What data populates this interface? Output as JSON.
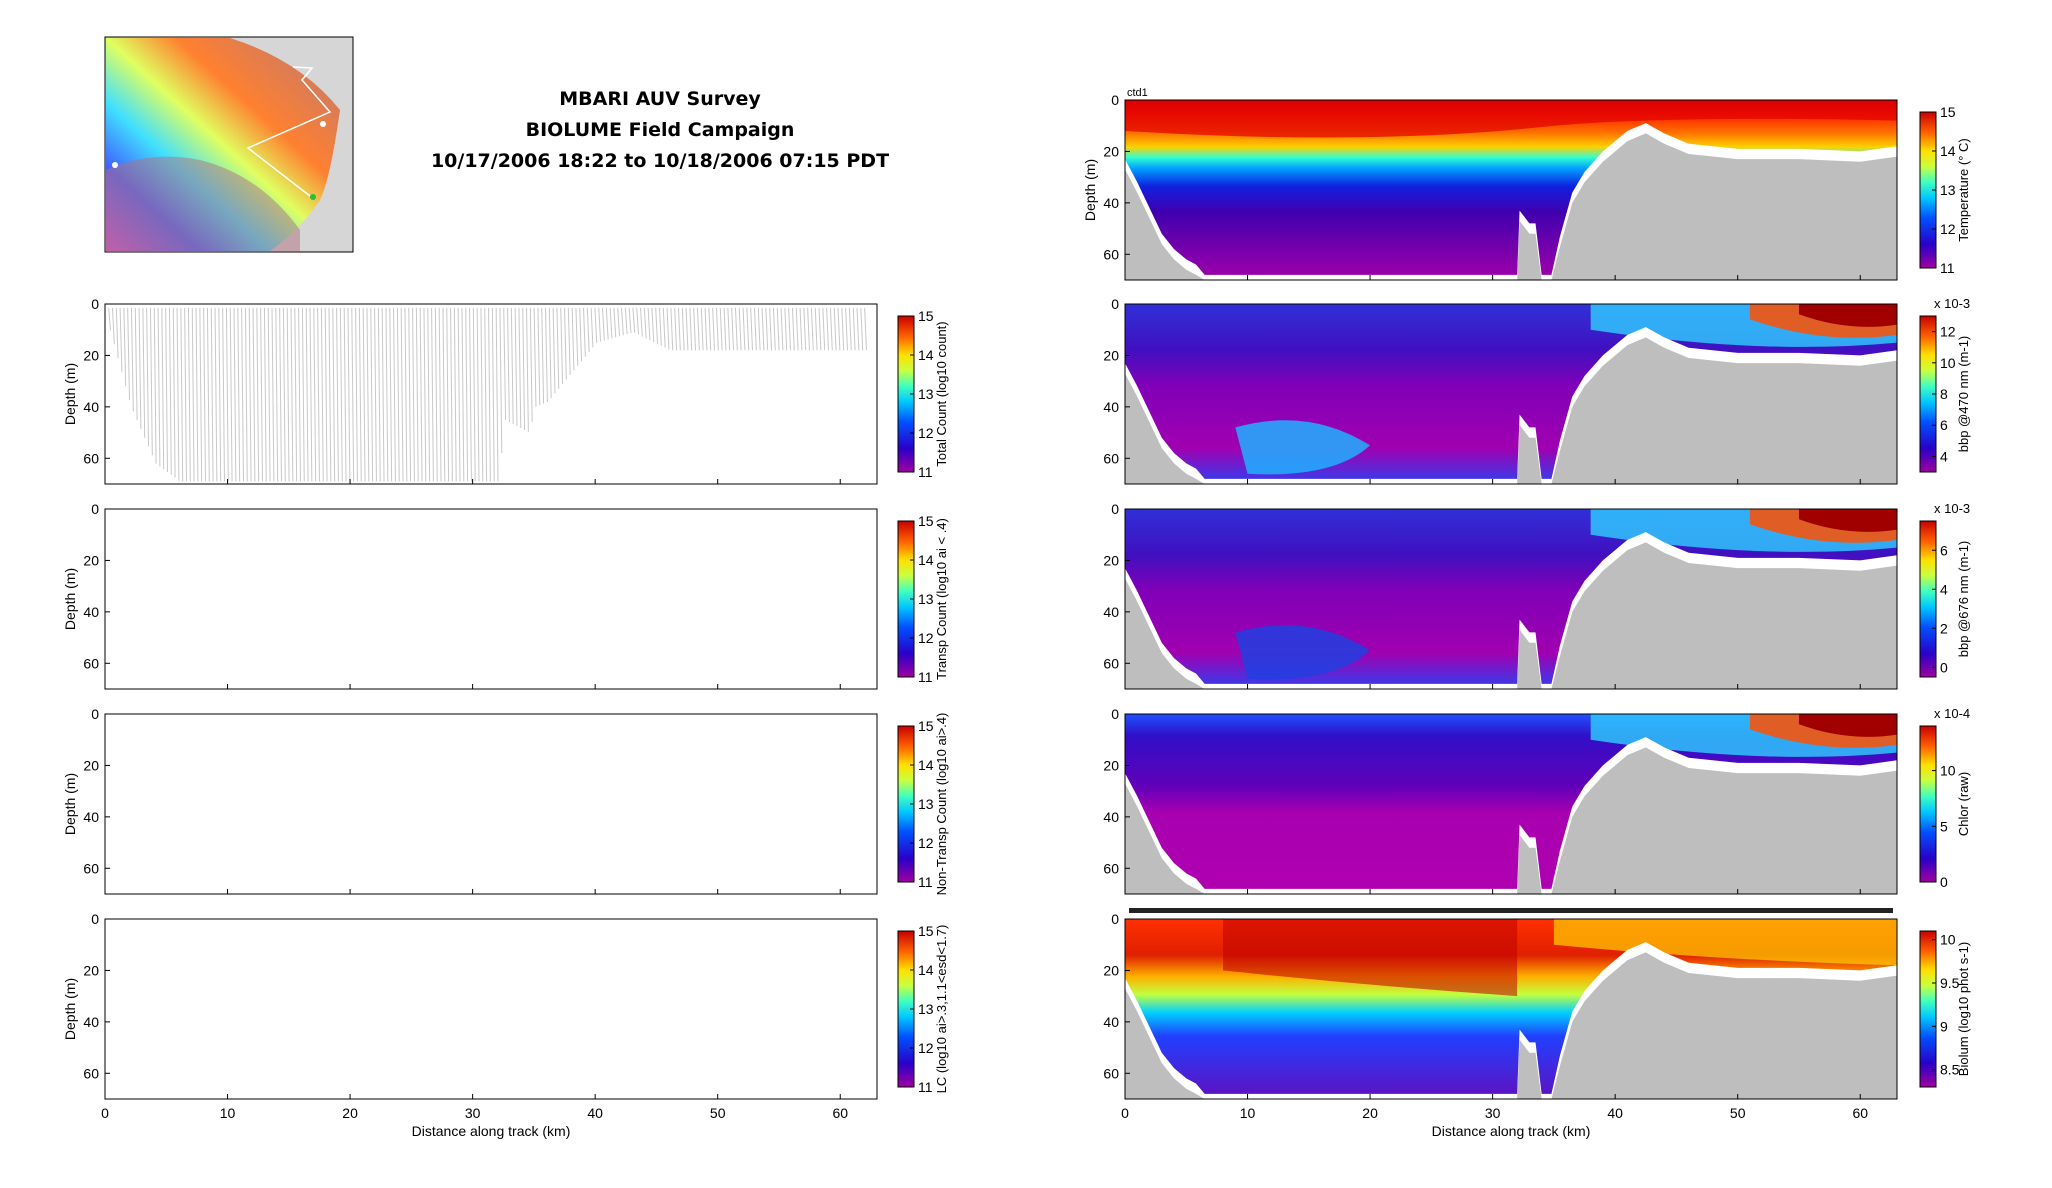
{
  "header": {
    "title": "MBARI AUV Survey",
    "campaign": "BIOLUME Field Campaign",
    "time_range": "10/17/2006 18:22 to 10/18/2006 07:15 PDT"
  },
  "colors": {
    "bathymetry": "#bebebe",
    "track": "#c8c8c8",
    "frame": "#000000"
  },
  "chart_data": [
    {
      "type": "heatmap",
      "panel": "total-count",
      "ylabel": "Depth (m)",
      "xlabel": "",
      "xlim": [
        0,
        63
      ],
      "ylim": [
        70,
        0
      ],
      "yticks": [
        0,
        20,
        40,
        60
      ],
      "xticks": [
        0,
        10,
        20,
        30,
        40,
        50,
        60
      ],
      "colorbar": {
        "label": "Total Count (log10 count)",
        "range": [
          11,
          15
        ],
        "ticks": [
          11,
          12,
          13,
          14,
          15
        ]
      }
    },
    {
      "type": "heatmap",
      "panel": "transp-count",
      "ylabel": "Depth (m)",
      "xlabel": "",
      "xlim": [
        0,
        63
      ],
      "ylim": [
        70,
        0
      ],
      "yticks": [
        0,
        20,
        40,
        60
      ],
      "xticks": [
        0,
        10,
        20,
        30,
        40,
        50,
        60
      ],
      "colorbar": {
        "label": "Transp Count (log10 ai < .4)",
        "range": [
          11,
          15
        ],
        "ticks": [
          11,
          12,
          13,
          14,
          15
        ]
      }
    },
    {
      "type": "heatmap",
      "panel": "non-transp-count",
      "ylabel": "Depth (m)",
      "xlabel": "",
      "xlim": [
        0,
        63
      ],
      "ylim": [
        70,
        0
      ],
      "yticks": [
        0,
        20,
        40,
        60
      ],
      "xticks": [
        0,
        10,
        20,
        30,
        40,
        50,
        60
      ],
      "colorbar": {
        "label": "Non-Transp Count (log10 ai>.4)",
        "range": [
          11,
          15
        ],
        "ticks": [
          11,
          12,
          13,
          14,
          15
        ]
      }
    },
    {
      "type": "heatmap",
      "panel": "lc",
      "ylabel": "Depth (m)",
      "xlabel": "Distance along track (km)",
      "xlim": [
        0,
        63
      ],
      "ylim": [
        70,
        0
      ],
      "yticks": [
        0,
        20,
        40,
        60
      ],
      "xticks": [
        0,
        10,
        20,
        30,
        40,
        50,
        60
      ],
      "colorbar": {
        "label": "LC (log10 ai>.3,1.1<esd<1.7)",
        "range": [
          11,
          15
        ],
        "ticks": [
          11,
          12,
          13,
          14,
          15
        ]
      }
    },
    {
      "type": "heatmap",
      "panel": "temperature",
      "title": "ctd1",
      "ylabel": "Depth (m)",
      "xlabel": "",
      "xlim": [
        0,
        63
      ],
      "ylim": [
        70,
        0
      ],
      "yticks": [
        0,
        20,
        40,
        60
      ],
      "xticks": [
        0,
        10,
        20,
        30,
        40,
        50,
        60
      ],
      "colorbar": {
        "label": "Temperature (° C)",
        "range": [
          11,
          15
        ],
        "ticks": [
          11,
          12,
          13,
          14,
          15
        ],
        "multiplier": ""
      }
    },
    {
      "type": "heatmap",
      "panel": "bbp470",
      "ylabel": "",
      "xlabel": "",
      "xlim": [
        0,
        63
      ],
      "ylim": [
        70,
        0
      ],
      "yticks": [
        0,
        20,
        40,
        60
      ],
      "xticks": [
        0,
        10,
        20,
        30,
        40,
        50,
        60
      ],
      "colorbar": {
        "label": "bbp @470 nm (m-1)",
        "range": [
          3,
          13
        ],
        "ticks": [
          4,
          6,
          8,
          10,
          12
        ],
        "multiplier": "x 10-3"
      }
    },
    {
      "type": "heatmap",
      "panel": "bbp676",
      "ylabel": "",
      "xlabel": "",
      "xlim": [
        0,
        63
      ],
      "ylim": [
        70,
        0
      ],
      "yticks": [
        0,
        20,
        40,
        60
      ],
      "xticks": [
        0,
        10,
        20,
        30,
        40,
        50,
        60
      ],
      "colorbar": {
        "label": "bbp @676 nm (m-1)",
        "range": [
          -0.5,
          7.5
        ],
        "ticks": [
          0,
          2,
          4,
          6
        ],
        "multiplier": "x 10-3"
      }
    },
    {
      "type": "heatmap",
      "panel": "chlor",
      "ylabel": "",
      "xlabel": "",
      "xlim": [
        0,
        63
      ],
      "ylim": [
        70,
        0
      ],
      "yticks": [
        0,
        20,
        40,
        60
      ],
      "xticks": [
        0,
        10,
        20,
        30,
        40,
        50,
        60
      ],
      "colorbar": {
        "label": "Chlor (raw)",
        "range": [
          0,
          14
        ],
        "ticks": [
          0,
          5,
          10
        ],
        "multiplier": "x 10-4"
      }
    },
    {
      "type": "heatmap",
      "panel": "biolum",
      "ylabel": "",
      "xlabel": "Distance along track (km)",
      "xlim": [
        0,
        63
      ],
      "ylim": [
        70,
        0
      ],
      "yticks": [
        0,
        20,
        40,
        60
      ],
      "xticks": [
        0,
        10,
        20,
        30,
        40,
        50,
        60
      ],
      "colorbar": {
        "label": "Biolum (log10 phot s-1)",
        "range": [
          8.3,
          10.1
        ],
        "ticks": [
          8.5,
          9,
          9.5,
          10
        ],
        "multiplier": ""
      }
    }
  ]
}
